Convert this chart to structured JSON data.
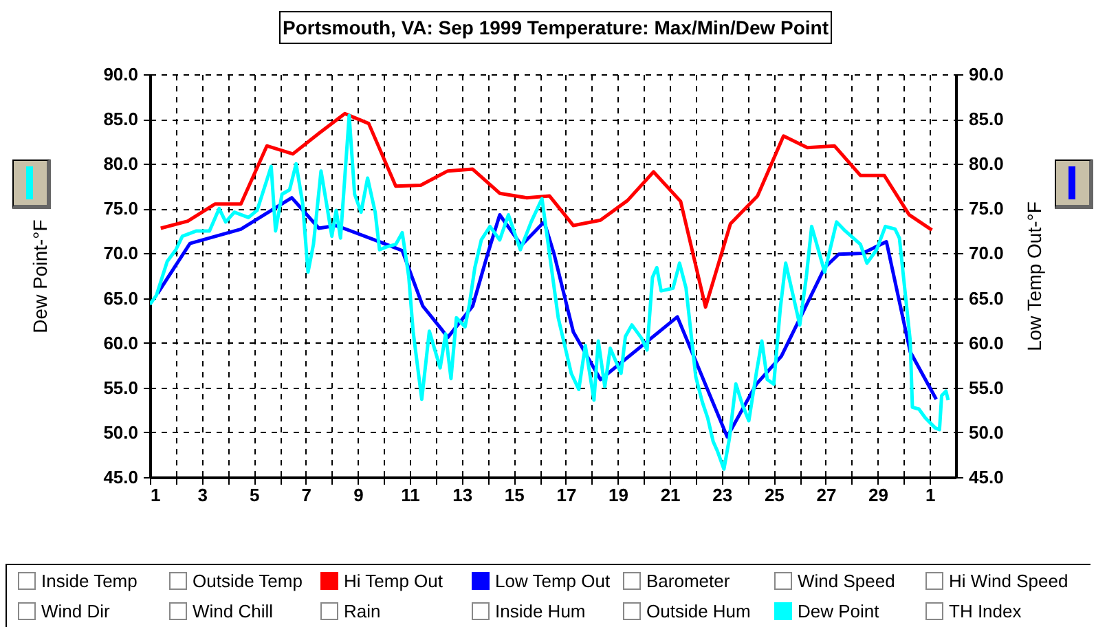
{
  "chart_data": {
    "type": "line",
    "title": "Portsmouth, VA: Sep 1999 Temperature: Max/Min/Dew Point",
    "ylabel": "Dew Point-°F",
    "y2label": "Low Temp Out-°F",
    "xlim": [
      "1999-09-01",
      "1999-10-02"
    ],
    "xticks": [
      {
        "value": "1999-09-01",
        "label": "1"
      },
      {
        "value": "1999-09-02",
        "label": null
      },
      {
        "value": "1999-09-03",
        "label": "3"
      },
      {
        "value": "1999-09-04",
        "label": null
      },
      {
        "value": "1999-09-05",
        "label": "5"
      },
      {
        "value": "1999-09-06",
        "label": null
      },
      {
        "value": "1999-09-07",
        "label": "7"
      },
      {
        "value": "1999-09-08",
        "label": null
      },
      {
        "value": "1999-09-09",
        "label": "9"
      },
      {
        "value": "1999-09-10",
        "label": null
      },
      {
        "value": "1999-09-11",
        "label": "11"
      },
      {
        "value": "1999-09-12",
        "label": null
      },
      {
        "value": "1999-09-13",
        "label": "13"
      },
      {
        "value": "1999-09-14",
        "label": null
      },
      {
        "value": "1999-09-15",
        "label": "15"
      },
      {
        "value": "1999-09-16",
        "label": null
      },
      {
        "value": "1999-09-17",
        "label": "17"
      },
      {
        "value": "1999-09-18",
        "label": null
      },
      {
        "value": "1999-09-19",
        "label": "19"
      },
      {
        "value": "1999-09-20",
        "label": null
      },
      {
        "value": "1999-09-21",
        "label": "21"
      },
      {
        "value": "1999-09-22",
        "label": null
      },
      {
        "value": "1999-09-23",
        "label": "23"
      },
      {
        "value": "1999-09-24",
        "label": null
      },
      {
        "value": "1999-09-25",
        "label": "25"
      },
      {
        "value": "1999-09-26",
        "label": null
      },
      {
        "value": "1999-09-27",
        "label": "27"
      },
      {
        "value": "1999-09-28",
        "label": null
      },
      {
        "value": "1999-09-29",
        "label": "29"
      },
      {
        "value": "1999-09-30",
        "label": null
      },
      {
        "value": "1999-10-01",
        "label": "1"
      }
    ],
    "ylim": [
      45,
      90
    ],
    "yticks": [
      {
        "value": 45,
        "label": "45.0"
      },
      {
        "value": 50,
        "label": "50.0"
      },
      {
        "value": 55,
        "label": "55.0"
      },
      {
        "value": 60,
        "label": "60.0"
      },
      {
        "value": 65,
        "label": "65.0"
      },
      {
        "value": 70,
        "label": "70.0"
      },
      {
        "value": 75,
        "label": "75.0"
      },
      {
        "value": 80,
        "label": "80.0"
      },
      {
        "value": 85,
        "label": "85.0"
      },
      {
        "value": 90,
        "label": "90.0"
      }
    ],
    "y2lim": [
      45,
      90
    ],
    "y2ticks": [
      {
        "value": 45,
        "label": "45.0"
      },
      {
        "value": 50,
        "label": "50.0"
      },
      {
        "value": 55,
        "label": "55.0"
      },
      {
        "value": 60,
        "label": "60.0"
      },
      {
        "value": 65,
        "label": "65.0"
      },
      {
        "value": 70,
        "label": "70.0"
      },
      {
        "value": 75,
        "label": "75.0"
      },
      {
        "value": 80,
        "label": "80.0"
      },
      {
        "value": 85,
        "label": "85.0"
      },
      {
        "value": 90,
        "label": "90.0"
      }
    ],
    "grid": true,
    "legend": "bottom",
    "line_style": "solid",
    "series": [
      {
        "name": "Hi Temp Out",
        "color": "#ff0000",
        "axis": "y2",
        "x": [
          "1999-09-01T10:00",
          "1999-09-02T11:00",
          "1999-09-03T12:00",
          "1999-09-04T12:00",
          "1999-09-05T12:00",
          "1999-09-06T12:00",
          "1999-09-07T12:00",
          "1999-09-08T12:00",
          "1999-09-09T10:00",
          "1999-09-10T11:00",
          "1999-09-11T10:00",
          "1999-09-12T11:00",
          "1999-09-13T10:00",
          "1999-09-14T11:00",
          "1999-09-15T12:00",
          "1999-09-16T09:00",
          "1999-09-17T07:00",
          "1999-09-18T08:00",
          "1999-09-19T09:00",
          "1999-09-20T09:00",
          "1999-09-21T10:00",
          "1999-09-22T09:00",
          "1999-09-23T08:00",
          "1999-09-24T09:00",
          "1999-09-25T09:00",
          "1999-09-26T07:00",
          "1999-09-27T08:00",
          "1999-09-28T08:00",
          "1999-09-29T06:00",
          "1999-09-30T05:00",
          "1999-10-01T02:00"
        ],
        "values": [
          72.8,
          73.6,
          75.5,
          75.5,
          82.0,
          81.1,
          83.4,
          85.6,
          84.5,
          77.5,
          77.6,
          79.2,
          79.4,
          76.7,
          76.2,
          76.4,
          73.1,
          73.7,
          75.9,
          79.1,
          75.8,
          64.0,
          73.3,
          76.4,
          83.1,
          81.8,
          82.0,
          78.7,
          78.7,
          74.3,
          72.6
        ]
      },
      {
        "name": "Low Temp Out",
        "color": "#0000ff",
        "axis": "y2",
        "x": [
          "1999-09-01T07:00",
          "1999-09-02T13:00",
          "1999-09-04T12:00",
          "1999-09-06T11:00",
          "1999-09-07T12:00",
          "1999-09-08T04:00",
          "1999-09-09T22:00",
          "1999-09-10T17:00",
          "1999-09-11T12:00",
          "1999-09-12T06:00",
          "1999-09-12T11:00",
          "1999-09-13T10:00",
          "1999-09-14T00:00",
          "1999-09-14T11:00",
          "1999-09-15T07:00",
          "1999-09-16T04:00",
          "1999-09-16T13:00",
          "1999-09-17T07:00",
          "1999-09-18T08:00",
          "1999-09-21T07:00",
          "1999-09-23T05:00",
          "1999-09-24T08:00",
          "1999-09-25T07:00",
          "1999-09-26T23:00",
          "1999-09-27T12:00",
          "1999-09-28T10:00",
          "1999-09-29T08:00",
          "1999-09-30T06:00",
          "1999-10-01T06:00"
        ],
        "values": [
          65.5,
          71.1,
          72.7,
          76.2,
          72.8,
          73.1,
          71.2,
          70.3,
          64.1,
          61.4,
          60.6,
          64.1,
          70.0,
          74.3,
          70.9,
          73.5,
          70.0,
          61.2,
          55.9,
          62.9,
          49.5,
          55.4,
          58.5,
          68.4,
          69.9,
          70.0,
          71.3,
          59.0,
          53.7
        ]
      },
      {
        "name": "Dew Point",
        "color": "#00ffff",
        "axis": "y",
        "x": [
          "1999-09-01T00:00",
          "1999-09-01T06:00",
          "1999-09-01T16:00",
          "1999-09-02T00:00",
          "1999-09-02T06:00",
          "1999-09-02T19:00",
          "1999-09-03T07:00",
          "1999-09-03T16:00",
          "1999-09-03T22:00",
          "1999-09-04T06:00",
          "1999-09-04T19:00",
          "1999-09-05T03:00",
          "1999-09-05T16:00",
          "1999-09-05T20:00",
          "1999-09-06T02:00",
          "1999-09-06T09:00",
          "1999-09-06T15:00",
          "1999-09-06T21:00",
          "1999-09-07T02:00",
          "1999-09-07T07:00",
          "1999-09-07T14:00",
          "1999-09-07T19:00",
          "1999-09-08T00:00",
          "1999-09-08T04:00",
          "1999-09-08T08:00",
          "1999-09-08T16:00",
          "1999-09-08T21:00",
          "1999-09-09T03:00",
          "1999-09-09T09:00",
          "1999-09-09T16:00",
          "1999-09-09T20:00",
          "1999-09-10T02:00",
          "1999-09-10T11:00",
          "1999-09-10T17:00",
          "1999-09-10T23:00",
          "1999-09-11T03:00",
          "1999-09-11T11:00",
          "1999-09-11T18:00",
          "1999-09-12T04:00",
          "1999-09-12T09:00",
          "1999-09-12T14:00",
          "1999-09-12T19:00",
          "1999-09-13T03:00",
          "1999-09-13T07:00",
          "1999-09-13T12:00",
          "1999-09-13T18:00",
          "1999-09-14T02:00",
          "1999-09-14T11:00",
          "1999-09-14T19:00",
          "1999-09-15T06:00",
          "1999-09-15T16:00",
          "1999-09-16T02:00",
          "1999-09-16T17:00",
          "1999-09-17T05:00",
          "1999-09-17T12:00",
          "1999-09-17T18:00",
          "1999-09-18T02:00",
          "1999-09-18T06:00",
          "1999-09-18T12:00",
          "1999-09-18T17:00",
          "1999-09-19T03:00",
          "1999-09-19T07:00",
          "1999-09-19T13:00",
          "1999-09-19T22:00",
          "1999-09-20T03:00",
          "1999-09-20T08:00",
          "1999-09-20T12:00",
          "1999-09-20T16:00",
          "1999-09-21T03:00",
          "1999-09-21T09:00",
          "1999-09-21T15:00",
          "1999-09-22T00:00",
          "1999-09-22T06:00",
          "1999-09-22T11:00",
          "1999-09-22T16:00",
          "1999-09-22T20:00",
          "1999-09-23T02:00",
          "1999-09-23T07:00",
          "1999-09-23T13:00",
          "1999-09-23T19:00",
          "1999-09-24T01:00",
          "1999-09-24T08:00",
          "1999-09-24T13:00",
          "1999-09-24T18:00",
          "1999-09-25T00:00",
          "1999-09-25T06:00",
          "1999-09-25T11:00",
          "1999-09-25T15:00",
          "1999-09-26T00:00",
          "1999-09-26T06:00",
          "1999-09-26T11:00",
          "1999-09-26T23:00",
          "1999-09-27T10:00",
          "1999-09-27T18:00",
          "1999-09-28T08:00",
          "1999-09-28T14:00",
          "1999-09-28T23:00",
          "1999-09-29T07:00",
          "1999-09-29T16:00",
          "1999-09-29T20:00",
          "1999-09-30T06:00",
          "1999-09-30T08:00",
          "1999-09-30T14:00",
          "1999-09-30T20:00",
          "1999-10-01T05:00",
          "1999-10-01T09:00",
          "1999-10-01T11:00",
          "1999-10-01T15:00",
          "1999-10-01T17:00"
        ],
        "values": [
          64.3,
          65.3,
          69.1,
          70.4,
          71.9,
          72.5,
          72.5,
          75.0,
          73.5,
          74.6,
          74.0,
          74.8,
          79.7,
          72.5,
          76.6,
          77.1,
          80.0,
          75.6,
          67.9,
          71.0,
          79.2,
          75.6,
          71.9,
          74.8,
          71.7,
          85.4,
          76.6,
          74.6,
          78.4,
          74.6,
          70.4,
          70.7,
          71.0,
          72.3,
          67.4,
          61.3,
          53.7,
          61.3,
          57.2,
          61.0,
          56.0,
          62.8,
          61.8,
          64.3,
          68.4,
          71.5,
          73.0,
          71.5,
          74.3,
          70.4,
          73.5,
          76.1,
          62.8,
          56.6,
          54.8,
          59.7,
          53.6,
          60.2,
          55.1,
          59.4,
          56.6,
          60.7,
          62.0,
          60.5,
          59.2,
          67.3,
          68.4,
          65.8,
          66.1,
          68.9,
          66.1,
          56.2,
          53.4,
          51.6,
          49.0,
          47.9,
          45.9,
          49.3,
          55.4,
          53.1,
          51.3,
          56.7,
          60.2,
          55.9,
          55.4,
          63.8,
          68.9,
          66.8,
          62.0,
          67.3,
          73.0,
          67.9,
          73.5,
          72.5,
          71.0,
          68.9,
          70.4,
          73.0,
          72.7,
          71.7,
          60.2,
          52.8,
          52.6,
          51.6,
          50.5,
          50.3,
          54.1,
          54.6,
          53.6
        ]
      }
    ],
    "annotations": [
      "Inside Temp",
      "Outside Temp",
      "Barometer",
      "Wind Speed",
      "Hi Wind Speed",
      "Wind Dir",
      "Wind Chill",
      "Rain",
      "Inside Hum",
      "Outside Hum",
      "TH Index"
    ]
  }
}
